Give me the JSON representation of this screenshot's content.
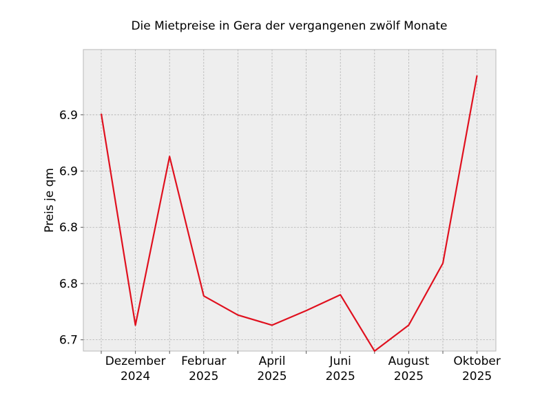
{
  "chart_data": {
    "type": "line",
    "title": "Die Mietpreise in Gera der vergangenen zwölf Monate",
    "xlabel": "",
    "ylabel": "Preis je qm",
    "x": [
      "2024-11",
      "2024-12",
      "2025-01",
      "2025-02",
      "2025-03",
      "2025-04",
      "2025-05",
      "2025-06",
      "2025-07",
      "2025-08",
      "2025-09",
      "2025-10"
    ],
    "x_tick_labels": [
      {
        "x": "2024-12",
        "line1": "Dezember",
        "line2": "2024"
      },
      {
        "x": "2025-02",
        "line1": "Februar",
        "line2": "2025"
      },
      {
        "x": "2025-04",
        "line1": "April",
        "line2": "2025"
      },
      {
        "x": "2025-06",
        "line1": "Juni",
        "line2": "2025"
      },
      {
        "x": "2025-08",
        "line1": "August",
        "line2": "2025"
      },
      {
        "x": "2025-10",
        "line1": "Oktober",
        "line2": "2025"
      }
    ],
    "y_ticks": [
      6.675,
      6.725,
      6.775,
      6.825,
      6.875
    ],
    "y_tick_labels": [
      "6.7",
      "6.8",
      "6.8",
      "6.9",
      "6.9"
    ],
    "ylim": [
      6.665,
      6.933
    ],
    "grid": true,
    "series": [
      {
        "color": "#e0101e",
        "values": [
          6.876,
          6.688,
          6.838,
          6.714,
          6.697,
          6.688,
          6.701,
          6.715,
          6.665,
          6.688,
          6.743,
          6.91
        ]
      }
    ]
  }
}
